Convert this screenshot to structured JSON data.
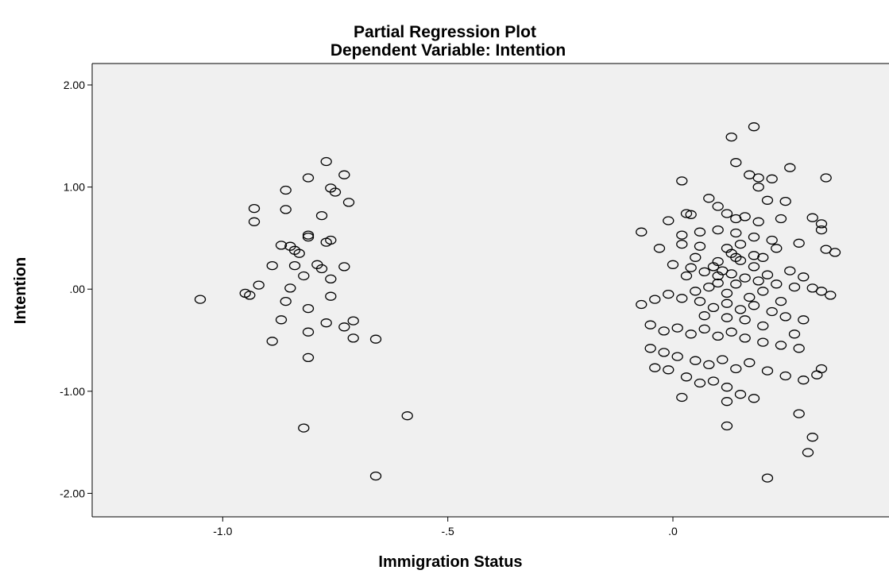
{
  "chart_data": {
    "type": "scatter",
    "title": "Partial Regression Plot",
    "subtitle": "Dependent Variable: Intention",
    "xlabel": "Immigration Status",
    "ylabel": "Intention",
    "xlim": [
      -1.29,
      0.48
    ],
    "ylim": [
      -2.23,
      2.21
    ],
    "xticks": [
      -1.0,
      -0.5,
      0.0
    ],
    "xtick_labels": [
      "-1.0",
      "-.5",
      ".0"
    ],
    "yticks": [
      2.0,
      1.0,
      0.0,
      -1.0,
      -2.0
    ],
    "ytick_labels": [
      "2.00",
      "1.00",
      ".00",
      "-1.00",
      "-2.00"
    ],
    "grid": false,
    "plot_background": "#f0f0f0",
    "marker_color": "#000000",
    "points": [
      [
        -1.05,
        -0.1
      ],
      [
        -0.77,
        1.25
      ],
      [
        -0.73,
        1.12
      ],
      [
        -0.81,
        1.09
      ],
      [
        -0.86,
        0.97
      ],
      [
        -0.76,
        0.99
      ],
      [
        -0.75,
        0.95
      ],
      [
        -0.93,
        0.79
      ],
      [
        -0.86,
        0.78
      ],
      [
        -0.72,
        0.85
      ],
      [
        -0.78,
        0.72
      ],
      [
        -0.93,
        0.66
      ],
      [
        -0.81,
        0.53
      ],
      [
        -0.81,
        0.51
      ],
      [
        -0.87,
        0.43
      ],
      [
        -0.85,
        0.42
      ],
      [
        -0.84,
        0.38
      ],
      [
        -0.83,
        0.35
      ],
      [
        -0.77,
        0.46
      ],
      [
        -0.76,
        0.48
      ],
      [
        -0.89,
        0.23
      ],
      [
        -0.84,
        0.23
      ],
      [
        -0.79,
        0.24
      ],
      [
        -0.78,
        0.2
      ],
      [
        -0.73,
        0.22
      ],
      [
        -0.82,
        0.13
      ],
      [
        -0.76,
        0.1
      ],
      [
        -0.92,
        0.04
      ],
      [
        -0.85,
        0.01
      ],
      [
        -0.95,
        -0.04
      ],
      [
        -0.94,
        -0.06
      ],
      [
        -0.86,
        -0.12
      ],
      [
        -0.76,
        -0.07
      ],
      [
        -0.81,
        -0.19
      ],
      [
        -0.87,
        -0.3
      ],
      [
        -0.77,
        -0.33
      ],
      [
        -0.73,
        -0.37
      ],
      [
        -0.71,
        -0.31
      ],
      [
        -0.81,
        -0.42
      ],
      [
        -0.89,
        -0.51
      ],
      [
        -0.71,
        -0.48
      ],
      [
        -0.66,
        -0.49
      ],
      [
        -0.81,
        -0.67
      ],
      [
        -0.59,
        -1.24
      ],
      [
        -0.82,
        -1.36
      ],
      [
        -0.66,
        -1.83
      ],
      [
        0.13,
        1.49
      ],
      [
        0.18,
        1.59
      ],
      [
        0.14,
        1.24
      ],
      [
        0.26,
        1.19
      ],
      [
        0.34,
        1.09
      ],
      [
        0.02,
        1.06
      ],
      [
        0.17,
        1.12
      ],
      [
        0.19,
        1.09
      ],
      [
        0.22,
        1.08
      ],
      [
        0.19,
        1.0
      ],
      [
        0.08,
        0.89
      ],
      [
        0.1,
        0.81
      ],
      [
        0.21,
        0.87
      ],
      [
        0.25,
        0.86
      ],
      [
        0.04,
        0.73
      ],
      [
        0.03,
        0.74
      ],
      [
        -0.01,
        0.67
      ],
      [
        0.12,
        0.74
      ],
      [
        0.14,
        0.69
      ],
      [
        0.16,
        0.71
      ],
      [
        0.19,
        0.66
      ],
      [
        0.24,
        0.69
      ],
      [
        0.31,
        0.7
      ],
      [
        0.33,
        0.64
      ],
      [
        -0.07,
        0.56
      ],
      [
        0.02,
        0.53
      ],
      [
        0.06,
        0.56
      ],
      [
        0.1,
        0.58
      ],
      [
        0.14,
        0.55
      ],
      [
        0.18,
        0.51
      ],
      [
        0.22,
        0.48
      ],
      [
        0.28,
        0.45
      ],
      [
        0.33,
        0.58
      ],
      [
        0.34,
        0.39
      ],
      [
        0.36,
        0.36
      ],
      [
        0.18,
        0.33
      ],
      [
        0.14,
        0.31
      ],
      [
        0.1,
        0.27
      ],
      [
        0.05,
        0.31
      ],
      [
        0.02,
        0.44
      ],
      [
        -0.03,
        0.4
      ],
      [
        0.0,
        0.24
      ],
      [
        0.04,
        0.21
      ],
      [
        0.07,
        0.17
      ],
      [
        0.1,
        0.13
      ],
      [
        0.13,
        0.15
      ],
      [
        0.16,
        0.11
      ],
      [
        0.19,
        0.08
      ],
      [
        0.23,
        0.05
      ],
      [
        0.27,
        0.02
      ],
      [
        0.31,
        0.01
      ],
      [
        0.33,
        -0.02
      ],
      [
        0.35,
        -0.06
      ],
      [
        -0.07,
        -0.15
      ],
      [
        -0.04,
        -0.1
      ],
      [
        -0.01,
        -0.05
      ],
      [
        0.02,
        -0.09
      ],
      [
        0.06,
        -0.12
      ],
      [
        0.09,
        -0.18
      ],
      [
        0.12,
        -0.14
      ],
      [
        0.15,
        -0.2
      ],
      [
        0.18,
        -0.16
      ],
      [
        0.22,
        -0.22
      ],
      [
        0.25,
        -0.27
      ],
      [
        0.29,
        -0.3
      ],
      [
        -0.05,
        -0.35
      ],
      [
        -0.02,
        -0.41
      ],
      [
        0.01,
        -0.38
      ],
      [
        0.04,
        -0.44
      ],
      [
        0.07,
        -0.39
      ],
      [
        0.1,
        -0.46
      ],
      [
        0.13,
        -0.42
      ],
      [
        0.16,
        -0.48
      ],
      [
        0.2,
        -0.52
      ],
      [
        0.24,
        -0.55
      ],
      [
        0.28,
        -0.58
      ],
      [
        -0.05,
        -0.58
      ],
      [
        -0.02,
        -0.62
      ],
      [
        0.01,
        -0.66
      ],
      [
        0.05,
        -0.7
      ],
      [
        0.08,
        -0.74
      ],
      [
        0.11,
        -0.69
      ],
      [
        0.14,
        -0.78
      ],
      [
        0.17,
        -0.72
      ],
      [
        0.21,
        -0.8
      ],
      [
        0.25,
        -0.85
      ],
      [
        0.29,
        -0.89
      ],
      [
        0.32,
        -0.84
      ],
      [
        0.33,
        -0.78
      ],
      [
        -0.04,
        -0.77
      ],
      [
        -0.01,
        -0.79
      ],
      [
        0.03,
        -0.86
      ],
      [
        0.06,
        -0.92
      ],
      [
        0.09,
        -0.9
      ],
      [
        0.12,
        -0.96
      ],
      [
        0.15,
        -1.03
      ],
      [
        0.18,
        -1.07
      ],
      [
        0.02,
        -1.06
      ],
      [
        0.12,
        -1.1
      ],
      [
        0.28,
        -1.22
      ],
      [
        0.12,
        -1.34
      ],
      [
        0.31,
        -1.45
      ],
      [
        0.3,
        -1.6
      ],
      [
        0.21,
        -1.85
      ],
      [
        0.06,
        0.42
      ],
      [
        0.12,
        0.4
      ],
      [
        0.13,
        0.35
      ],
      [
        0.15,
        0.28
      ],
      [
        0.09,
        0.22
      ],
      [
        0.11,
        0.18
      ],
      [
        0.14,
        0.05
      ],
      [
        0.08,
        0.02
      ],
      [
        0.12,
        -0.04
      ],
      [
        0.17,
        -0.08
      ],
      [
        0.2,
        -0.02
      ],
      [
        0.05,
        -0.02
      ],
      [
        0.1,
        0.06
      ],
      [
        0.18,
        0.22
      ],
      [
        0.21,
        0.14
      ],
      [
        0.26,
        0.18
      ],
      [
        0.29,
        0.12
      ],
      [
        0.16,
        -0.3
      ],
      [
        0.12,
        -0.28
      ],
      [
        0.07,
        -0.26
      ],
      [
        0.2,
        -0.36
      ],
      [
        0.03,
        0.13
      ],
      [
        0.24,
        -0.12
      ],
      [
        0.27,
        -0.44
      ],
      [
        0.15,
        0.44
      ],
      [
        0.2,
        0.31
      ],
      [
        0.23,
        0.4
      ]
    ]
  }
}
